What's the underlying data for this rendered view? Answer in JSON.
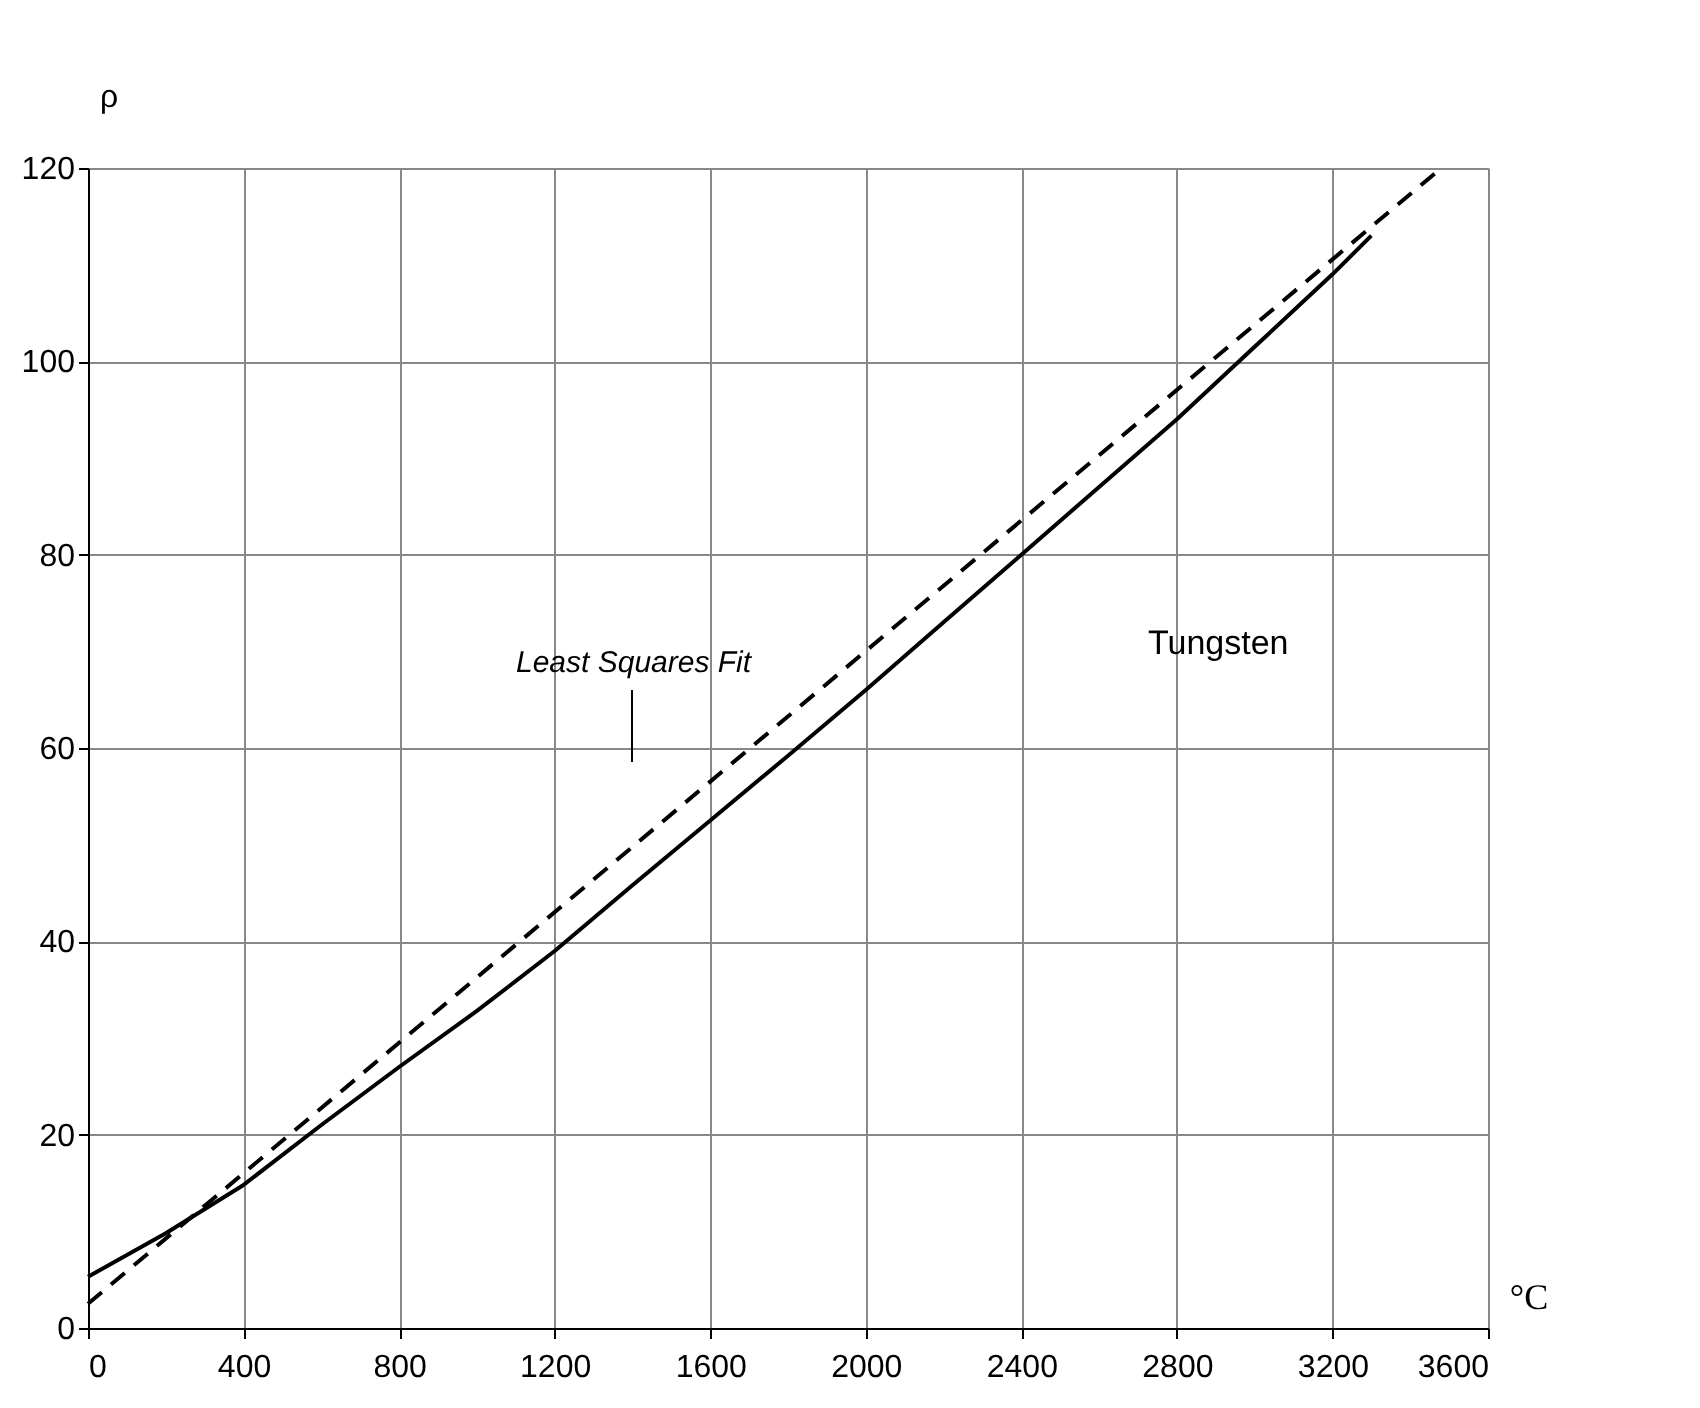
{
  "chart_data": {
    "type": "line",
    "xlabel": "°C",
    "ylabel": "ρ",
    "x": [
      0,
      200,
      400,
      600,
      800,
      1000,
      1200,
      1400,
      1600,
      1800,
      2000,
      2200,
      2400,
      2600,
      2800,
      3000,
      3200,
      3300
    ],
    "series": [
      {
        "color": "#000000",
        "line_style": "solid",
        "values": [
          5.3,
          9.8,
          14.8,
          21,
          27,
          32.8,
          39,
          45.8,
          52.5,
          59.2,
          66,
          73,
          80,
          87,
          94,
          101.5,
          109,
          113
        ]
      },
      {
        "type": "line",
        "x": [
          0,
          3480
        ],
        "color": "#000000",
        "line_style": "dashed",
        "values": [
          2.5,
          120
        ]
      }
    ],
    "xlim": [
      0,
      3600
    ],
    "ylim": [
      0,
      120
    ],
    "xticks": [
      0,
      400,
      800,
      1200,
      1600,
      2000,
      2400,
      2800,
      3200,
      3600
    ],
    "yticks": [
      0,
      20,
      40,
      60,
      80,
      100,
      120
    ],
    "grid": true,
    "marker": "none",
    "annotations": [
      "Least Squares Fit",
      "Tungsten"
    ]
  }
}
